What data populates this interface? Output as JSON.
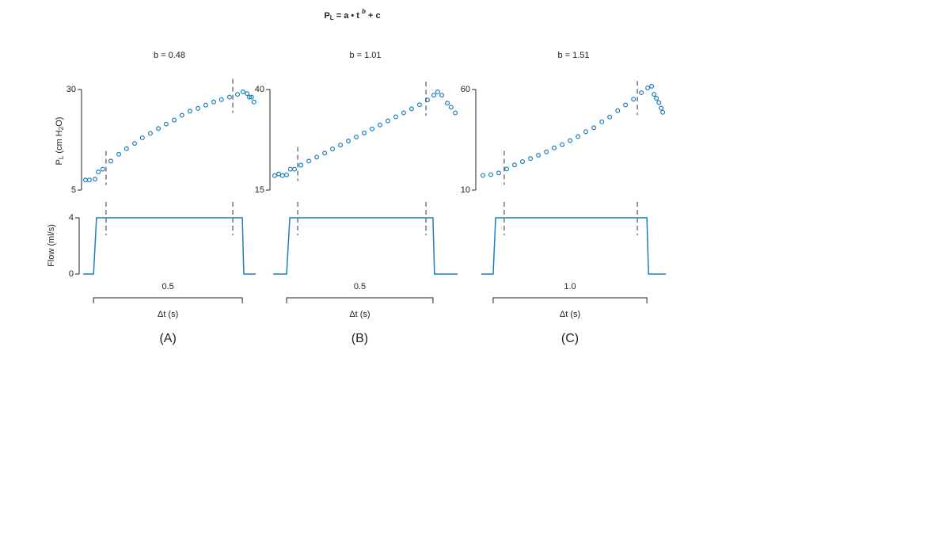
{
  "title": {
    "base": "P",
    "sub": "L",
    "mid": " = a • t ",
    "sup": "b",
    "end": " + c"
  },
  "ylabel_pressure": {
    "base": "P",
    "sub": "L",
    "mid": " (cm H",
    "sub2": "2",
    "end": "O)"
  },
  "ylabel_flow": "Flow (ml/s)",
  "chart_data": [
    {
      "type": "scatter",
      "subtitle": "b = 0.48",
      "color": "#1a7fc1",
      "x": [
        0.008,
        0.021,
        0.04,
        0.051,
        0.066,
        0.093,
        0.12,
        0.146,
        0.173,
        0.199,
        0.226,
        0.253,
        0.279,
        0.306,
        0.332,
        0.359,
        0.386,
        0.412,
        0.439,
        0.465,
        0.492,
        0.519,
        0.537,
        0.551,
        0.559,
        0.566,
        0.574
      ],
      "values": [
        7.5,
        7.5,
        7.7,
        9.5,
        10.2,
        12.2,
        13.9,
        15.3,
        16.6,
        18.0,
        19.1,
        20.3,
        21.4,
        22.4,
        23.6,
        24.6,
        25.3,
        26.1,
        26.9,
        27.5,
        28.1,
        28.8,
        29.4,
        29.0,
        28.1,
        28.1,
        26.9
      ],
      "xlim": [
        0,
        0.58
      ],
      "ylim": [
        5,
        30
      ],
      "yticks": [
        5,
        30
      ],
      "fit_window": [
        0.077,
        0.503
      ],
      "flow": {
        "type": "line",
        "x": [
          0,
          0.035,
          0.045,
          0.535,
          0.54,
          0.58
        ],
        "values": [
          0,
          0,
          4,
          4,
          0,
          0
        ],
        "ylim": [
          0,
          4
        ],
        "yticks": [
          0,
          4
        ]
      },
      "scale_bar": 0.5,
      "xlabel": "Δt (s)",
      "panel_label": "(A)"
    },
    {
      "type": "scatter",
      "subtitle": "b = 1.01",
      "color": "#1a7fc1",
      "x": [
        0.005,
        0.019,
        0.032,
        0.046,
        0.059,
        0.073,
        0.095,
        0.122,
        0.149,
        0.176,
        0.203,
        0.23,
        0.257,
        0.284,
        0.311,
        0.338,
        0.365,
        0.392,
        0.419,
        0.446,
        0.473,
        0.5,
        0.527,
        0.549,
        0.562,
        0.576,
        0.595,
        0.608,
        0.622
      ],
      "values": [
        18.6,
        19.0,
        18.6,
        18.8,
        20.2,
        20.2,
        21.2,
        22.2,
        23.2,
        24.2,
        25.2,
        26.2,
        27.2,
        28.2,
        29.2,
        30.2,
        31.2,
        32.2,
        33.2,
        34.2,
        35.2,
        36.2,
        37.4,
        38.6,
        39.4,
        38.6,
        36.6,
        35.6,
        34.2
      ],
      "xlim": [
        0,
        0.63
      ],
      "ylim": [
        15,
        40
      ],
      "yticks": [
        15,
        40
      ],
      "fit_window": [
        0.084,
        0.522
      ],
      "flow": {
        "type": "line",
        "x": [
          0,
          0.046,
          0.057,
          0.546,
          0.551,
          0.63
        ],
        "values": [
          0,
          0,
          4,
          4,
          0,
          0
        ],
        "ylim": [
          0,
          4
        ]
      },
      "scale_bar": 0.5,
      "xlabel": "Δt (s)",
      "panel_label": "(B)"
    },
    {
      "type": "scatter",
      "subtitle": "b = 1.51",
      "color": "#1a7fc1",
      "x": [
        0.01,
        0.062,
        0.113,
        0.165,
        0.216,
        0.268,
        0.32,
        0.371,
        0.423,
        0.474,
        0.526,
        0.577,
        0.629,
        0.68,
        0.732,
        0.784,
        0.835,
        0.887,
        0.938,
        0.99,
        1.041,
        1.082,
        1.108,
        1.124,
        1.139,
        1.155,
        1.17,
        1.18
      ],
      "values": [
        17.3,
        17.7,
        18.5,
        20.5,
        22.5,
        24.1,
        25.7,
        27.3,
        29.0,
        31.0,
        32.6,
        34.6,
        36.6,
        39.0,
        41.0,
        43.9,
        46.3,
        49.5,
        52.3,
        55.2,
        58.4,
        60.8,
        61.6,
        57.6,
        55.6,
        53.5,
        50.7,
        48.7
      ],
      "xlim": [
        0,
        1.2
      ],
      "ylim": [
        10,
        60
      ],
      "yticks": [
        10,
        60
      ],
      "fit_window": [
        0.149,
        1.015
      ],
      "flow": {
        "type": "line",
        "x": [
          0,
          0.077,
          0.093,
          1.077,
          1.088,
          1.2
        ],
        "values": [
          0,
          0,
          4,
          4,
          0,
          0
        ],
        "ylim": [
          0,
          4
        ]
      },
      "scale_bar": {
        "value": 1,
        "label": "1.0"
      },
      "xlabel": "Δt (s)",
      "panel_label": "(C)"
    }
  ]
}
